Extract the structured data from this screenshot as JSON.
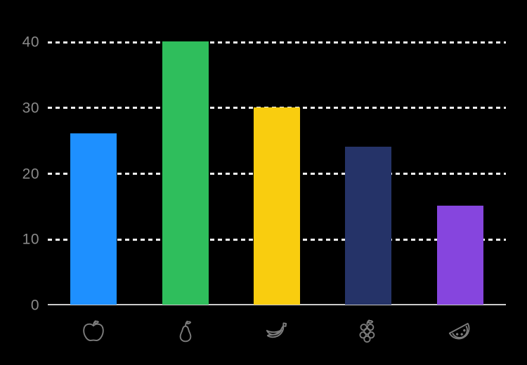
{
  "chart_data": {
    "type": "bar",
    "title": "",
    "xlabel": "",
    "ylabel": "",
    "categories": [
      "apple",
      "pear",
      "banana",
      "grapes",
      "watermelon"
    ],
    "category_icons": [
      "apple-icon",
      "pear-icon",
      "banana-icon",
      "grapes-icon",
      "watermelon-icon"
    ],
    "values": [
      26,
      40,
      30,
      24,
      15
    ],
    "bar_colors": [
      "#1E90FF",
      "#2FBE5C",
      "#F9CD0F",
      "#253368",
      "#8645DE"
    ],
    "ylim": [
      0,
      40
    ],
    "yticks": [
      0,
      10,
      20,
      30,
      40
    ],
    "ytick_labels": [
      "0",
      "10",
      "20",
      "30",
      "40"
    ],
    "grid": "horizontal-dashed",
    "legend": "none"
  },
  "style": {
    "background": "#000000",
    "gridline_color": "#F5F5F5",
    "axis_line_color": "#CCCCCC",
    "tick_label_color": "#8A8A8A",
    "icon_color": "#7D7D7D"
  }
}
